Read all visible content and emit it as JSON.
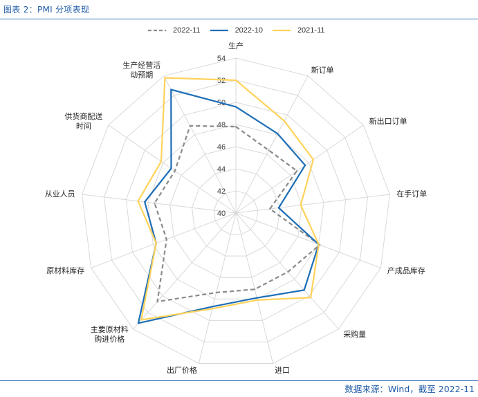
{
  "theme": {
    "accent": "#1f5ba6",
    "rule": "#2e6db4"
  },
  "footer": {
    "source": "数据来源：Wind，截至 2022-11"
  },
  "chart_data": {
    "type": "radar",
    "title": "图表 2：PMI 分项表现",
    "categories": [
      "生产",
      "新订单",
      "新出口订单",
      "在手订单",
      "产成品库存",
      "采购量",
      "进口",
      "出厂价格",
      "主要原材料购进价格",
      "原材料库存",
      "从业人员",
      "供货商配送时间",
      "生产经营活动预期"
    ],
    "series": [
      {
        "name": "2022-11",
        "color": "#8c8c8c",
        "line_style": "dashed",
        "values": [
          47.8,
          46.4,
          46.7,
          43.1,
          48.1,
          47.1,
          47.1,
          47.4,
          50.7,
          46.7,
          47.4,
          46.7,
          48.9
        ]
      },
      {
        "name": "2022-10",
        "color": "#1f6fb8",
        "line_style": "solid",
        "values": [
          49.6,
          48.1,
          47.6,
          43.9,
          48.0,
          49.3,
          47.9,
          48.7,
          53.3,
          47.7,
          48.3,
          47.1,
          52.6
        ]
      },
      {
        "name": "2021-11",
        "color": "#ffd35c",
        "line_style": "solid",
        "values": [
          52.0,
          49.4,
          48.5,
          45.9,
          48.0,
          50.2,
          48.1,
          48.9,
          52.9,
          47.7,
          48.9,
          48.2,
          53.8
        ]
      }
    ],
    "rlim": [
      40,
      54
    ],
    "r_ticks": [
      40,
      42,
      44,
      46,
      48,
      50,
      52,
      54
    ],
    "grid": true,
    "legend": "top"
  }
}
